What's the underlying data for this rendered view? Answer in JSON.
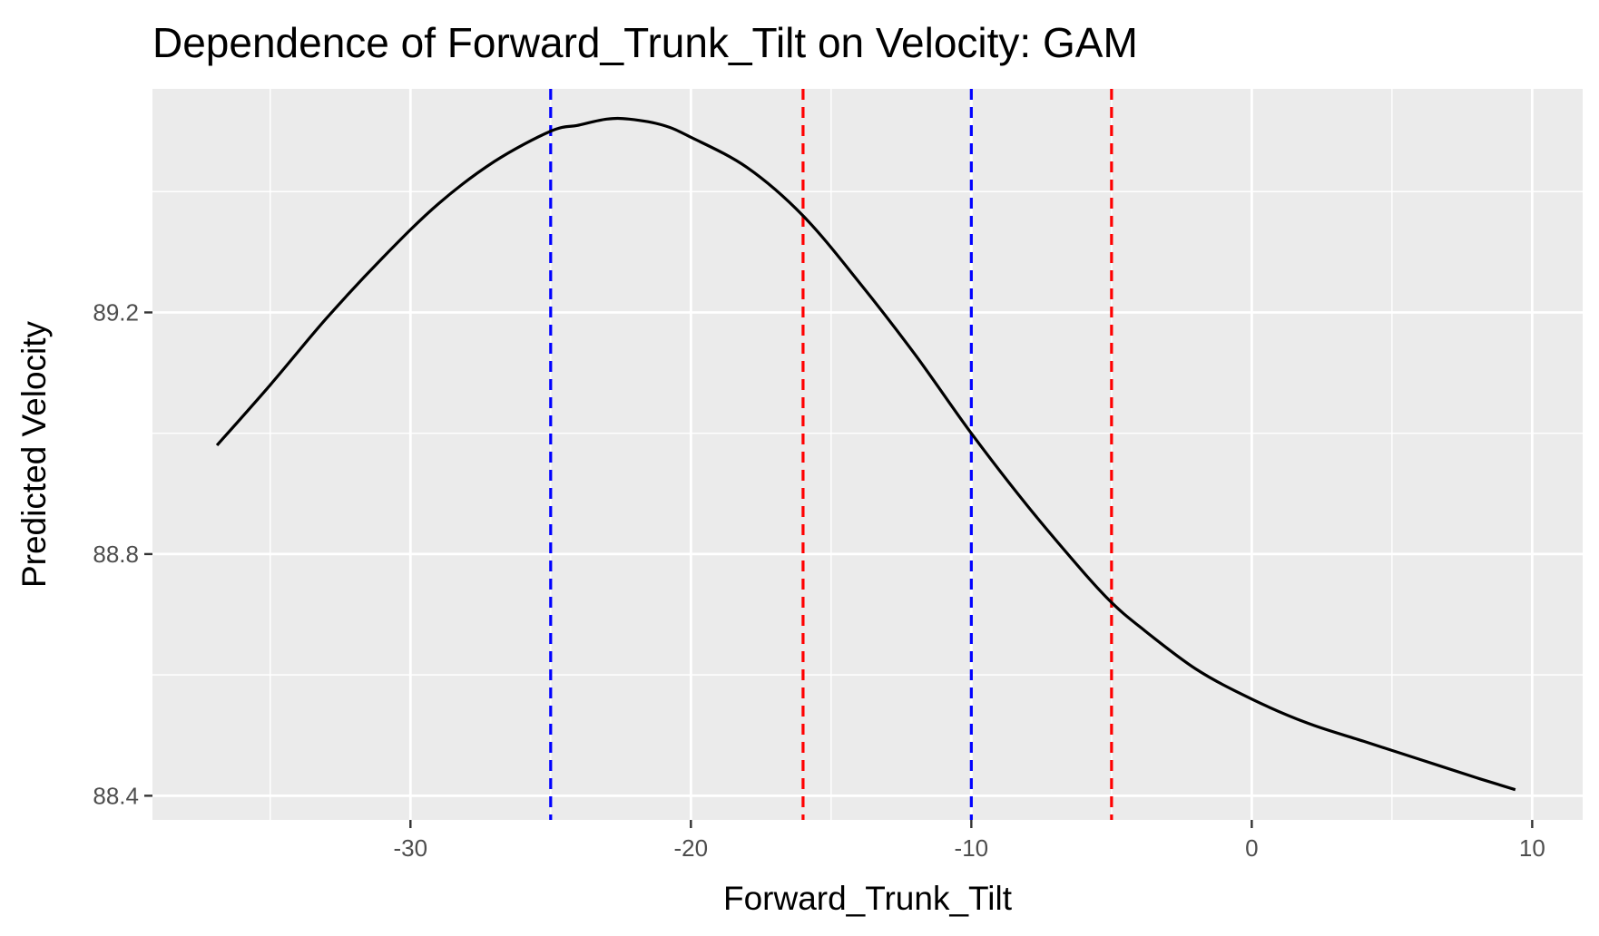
{
  "chart_data": {
    "type": "line",
    "title": "Dependence of Forward_Trunk_Tilt on Velocity: GAM",
    "xlabel": "Forward_Trunk_Tilt",
    "ylabel": "Predicted Velocity",
    "xlim": [
      -39.2,
      11.8
    ],
    "ylim": [
      88.36,
      89.57
    ],
    "x_ticks": [
      -30,
      -20,
      -10,
      0,
      10
    ],
    "x_tick_labels": [
      "-30",
      "-20",
      "-10",
      "0",
      "10"
    ],
    "x_minor_ticks": [
      -35,
      -25,
      -15,
      -5,
      5
    ],
    "y_ticks": [
      88.4,
      88.8,
      89.2
    ],
    "y_tick_labels": [
      "88.4",
      "88.8",
      "89.2"
    ],
    "y_minor_ticks": [
      88.6,
      89.0,
      89.4
    ],
    "grid": true,
    "background": "#ebebeb",
    "series": [
      {
        "line_color": "#000000",
        "x": [
          -36.9,
          -35,
          -33,
          -31,
          -29,
          -27,
          -25,
          -24,
          -23,
          -22.2,
          -21,
          -20,
          -18,
          -16,
          -14,
          -12,
          -10,
          -8,
          -6,
          -5,
          -4,
          -2,
          0,
          2,
          4,
          6,
          8,
          9.4
        ],
        "y": [
          88.98,
          89.08,
          89.19,
          89.29,
          89.38,
          89.45,
          89.5,
          89.51,
          89.52,
          89.52,
          89.51,
          89.49,
          89.44,
          89.36,
          89.25,
          89.13,
          89.0,
          88.88,
          88.77,
          88.72,
          88.68,
          88.61,
          88.56,
          88.52,
          88.49,
          88.46,
          88.43,
          88.41
        ]
      }
    ],
    "vlines": [
      {
        "x": -25,
        "color": "#0000ff",
        "style": "dashed"
      },
      {
        "x": -10,
        "color": "#0000ff",
        "style": "dashed"
      },
      {
        "x": -16,
        "color": "#ff0000",
        "style": "dashed"
      },
      {
        "x": -5,
        "color": "#ff0000",
        "style": "dashed"
      }
    ]
  }
}
